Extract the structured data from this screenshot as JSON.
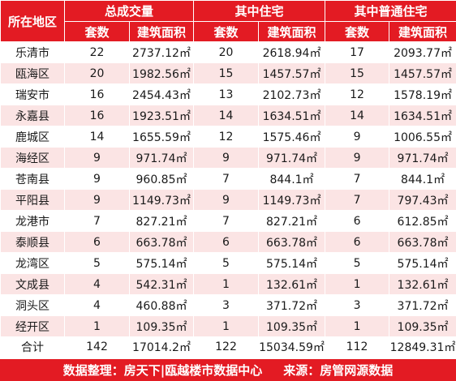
{
  "table": {
    "header_region": "所在地区",
    "groups": [
      "总成交量",
      "其中住宅",
      "其中普通住宅"
    ],
    "subheaders": [
      "套数",
      "建筑面积",
      "套数",
      "建筑面积",
      "套数",
      "建筑面积"
    ],
    "rows": [
      [
        "乐清市",
        "22",
        "2737.12㎡",
        "20",
        "2618.94㎡",
        "17",
        "2093.77㎡"
      ],
      [
        "瓯海区",
        "20",
        "1982.56㎡",
        "15",
        "1457.57㎡",
        "15",
        "1457.57㎡"
      ],
      [
        "瑞安市",
        "16",
        "2454.43㎡",
        "13",
        "2102.73㎡",
        "12",
        "1578.19㎡"
      ],
      [
        "永嘉县",
        "16",
        "1923.51㎡",
        "14",
        "1634.51㎡",
        "14",
        "1634.51㎡"
      ],
      [
        "鹿城区",
        "14",
        "1655.59㎡",
        "12",
        "1575.46㎡",
        "9",
        "1006.55㎡"
      ],
      [
        "海经区",
        "9",
        "971.74㎡",
        "9",
        "971.74㎡",
        "9",
        "971.74㎡"
      ],
      [
        "苍南县",
        "9",
        "960.85㎡",
        "7",
        "844.1㎡",
        "7",
        "844.1㎡"
      ],
      [
        "平阳县",
        "9",
        "1149.73㎡",
        "9",
        "1149.73㎡",
        "7",
        "797.43㎡"
      ],
      [
        "龙港市",
        "7",
        "827.21㎡",
        "7",
        "827.21㎡",
        "6",
        "612.85㎡"
      ],
      [
        "泰顺县",
        "6",
        "663.78㎡",
        "6",
        "663.78㎡",
        "6",
        "663.78㎡"
      ],
      [
        "龙湾区",
        "5",
        "575.14㎡",
        "5",
        "575.14㎡",
        "5",
        "575.14㎡"
      ],
      [
        "文成县",
        "4",
        "542.31㎡",
        "1",
        "132.61㎡",
        "1",
        "132.61㎡"
      ],
      [
        "洞头区",
        "4",
        "460.88㎡",
        "3",
        "371.72㎡",
        "3",
        "371.72㎡"
      ],
      [
        "经开区",
        "1",
        "109.35㎡",
        "1",
        "109.35㎡",
        "1",
        "109.35㎡"
      ]
    ],
    "total": [
      "合计",
      "142",
      "17014.2㎡",
      "122",
      "15034.59㎡",
      "112",
      "12849.31㎡"
    ]
  },
  "footer": {
    "left": "数据整理：房天下|瓯越楼市数据中心",
    "right": "来源：房管网源数据"
  },
  "colors": {
    "header_red": "#e31b23",
    "stripe_pink": "#fbe4e4"
  }
}
